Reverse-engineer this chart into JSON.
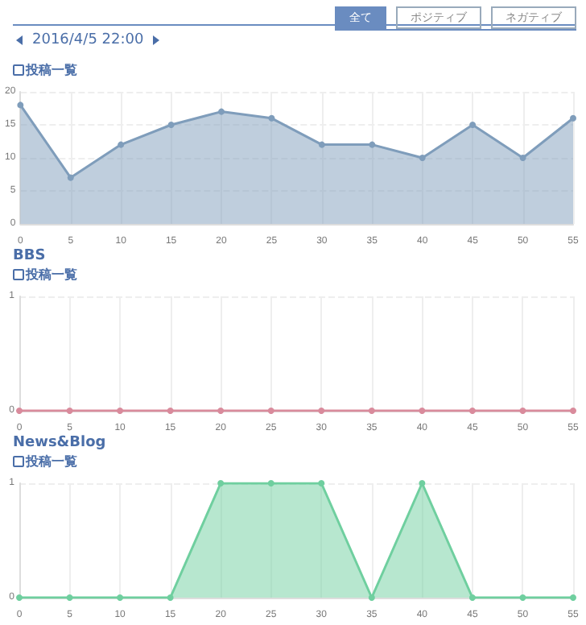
{
  "chart_data": [
    {
      "type": "area",
      "subtitle": "投稿一覧",
      "annotations": [
        "全て",
        "ポジティブ",
        "ネガティブ",
        "2016/4/5 22:00"
      ],
      "x": [
        0,
        5,
        10,
        15,
        20,
        25,
        30,
        35,
        40,
        45,
        50,
        55
      ],
      "series": [
        {
          "color": "#7f9dbb",
          "values": [
            18,
            7,
            12,
            15,
            17,
            16,
            12,
            12,
            10,
            15,
            10,
            16
          ]
        }
      ],
      "xlim": [
        0,
        55
      ],
      "xticks": [
        0,
        5,
        10,
        15,
        20,
        25,
        30,
        35,
        40,
        45,
        50,
        55
      ],
      "ylim": [
        0,
        20
      ],
      "yticks": [
        0,
        5,
        10,
        15,
        20
      ],
      "grid": true,
      "marker": "circle"
    },
    {
      "type": "line",
      "title": "BBS",
      "subtitle": "投稿一覧",
      "x": [
        0,
        5,
        10,
        15,
        20,
        25,
        30,
        35,
        40,
        45,
        50,
        55
      ],
      "series": [
        {
          "color": "#d98b9c",
          "values": [
            0,
            0,
            0,
            0,
            0,
            0,
            0,
            0,
            0,
            0,
            0,
            0
          ]
        }
      ],
      "xlim": [
        0,
        55
      ],
      "xticks": [
        0,
        5,
        10,
        15,
        20,
        25,
        30,
        35,
        40,
        45,
        50,
        55
      ],
      "ylim": [
        0,
        1
      ],
      "yticks": [
        0,
        1
      ],
      "grid": true,
      "marker": "circle"
    },
    {
      "type": "area",
      "title": "News&Blog",
      "subtitle": "投稿一覧",
      "x": [
        0,
        5,
        10,
        15,
        20,
        25,
        30,
        35,
        40,
        45,
        50,
        55
      ],
      "series": [
        {
          "color": "#6fcf9f",
          "values": [
            0,
            0,
            0,
            0,
            1,
            1,
            1,
            0,
            1,
            0,
            0,
            0
          ]
        }
      ],
      "xlim": [
        0,
        55
      ],
      "xticks": [
        0,
        5,
        10,
        15,
        20,
        25,
        30,
        35,
        40,
        45,
        50,
        55
      ],
      "ylim": [
        0,
        1
      ],
      "yticks": [
        0,
        1
      ],
      "grid": true,
      "marker": "circle"
    }
  ]
}
